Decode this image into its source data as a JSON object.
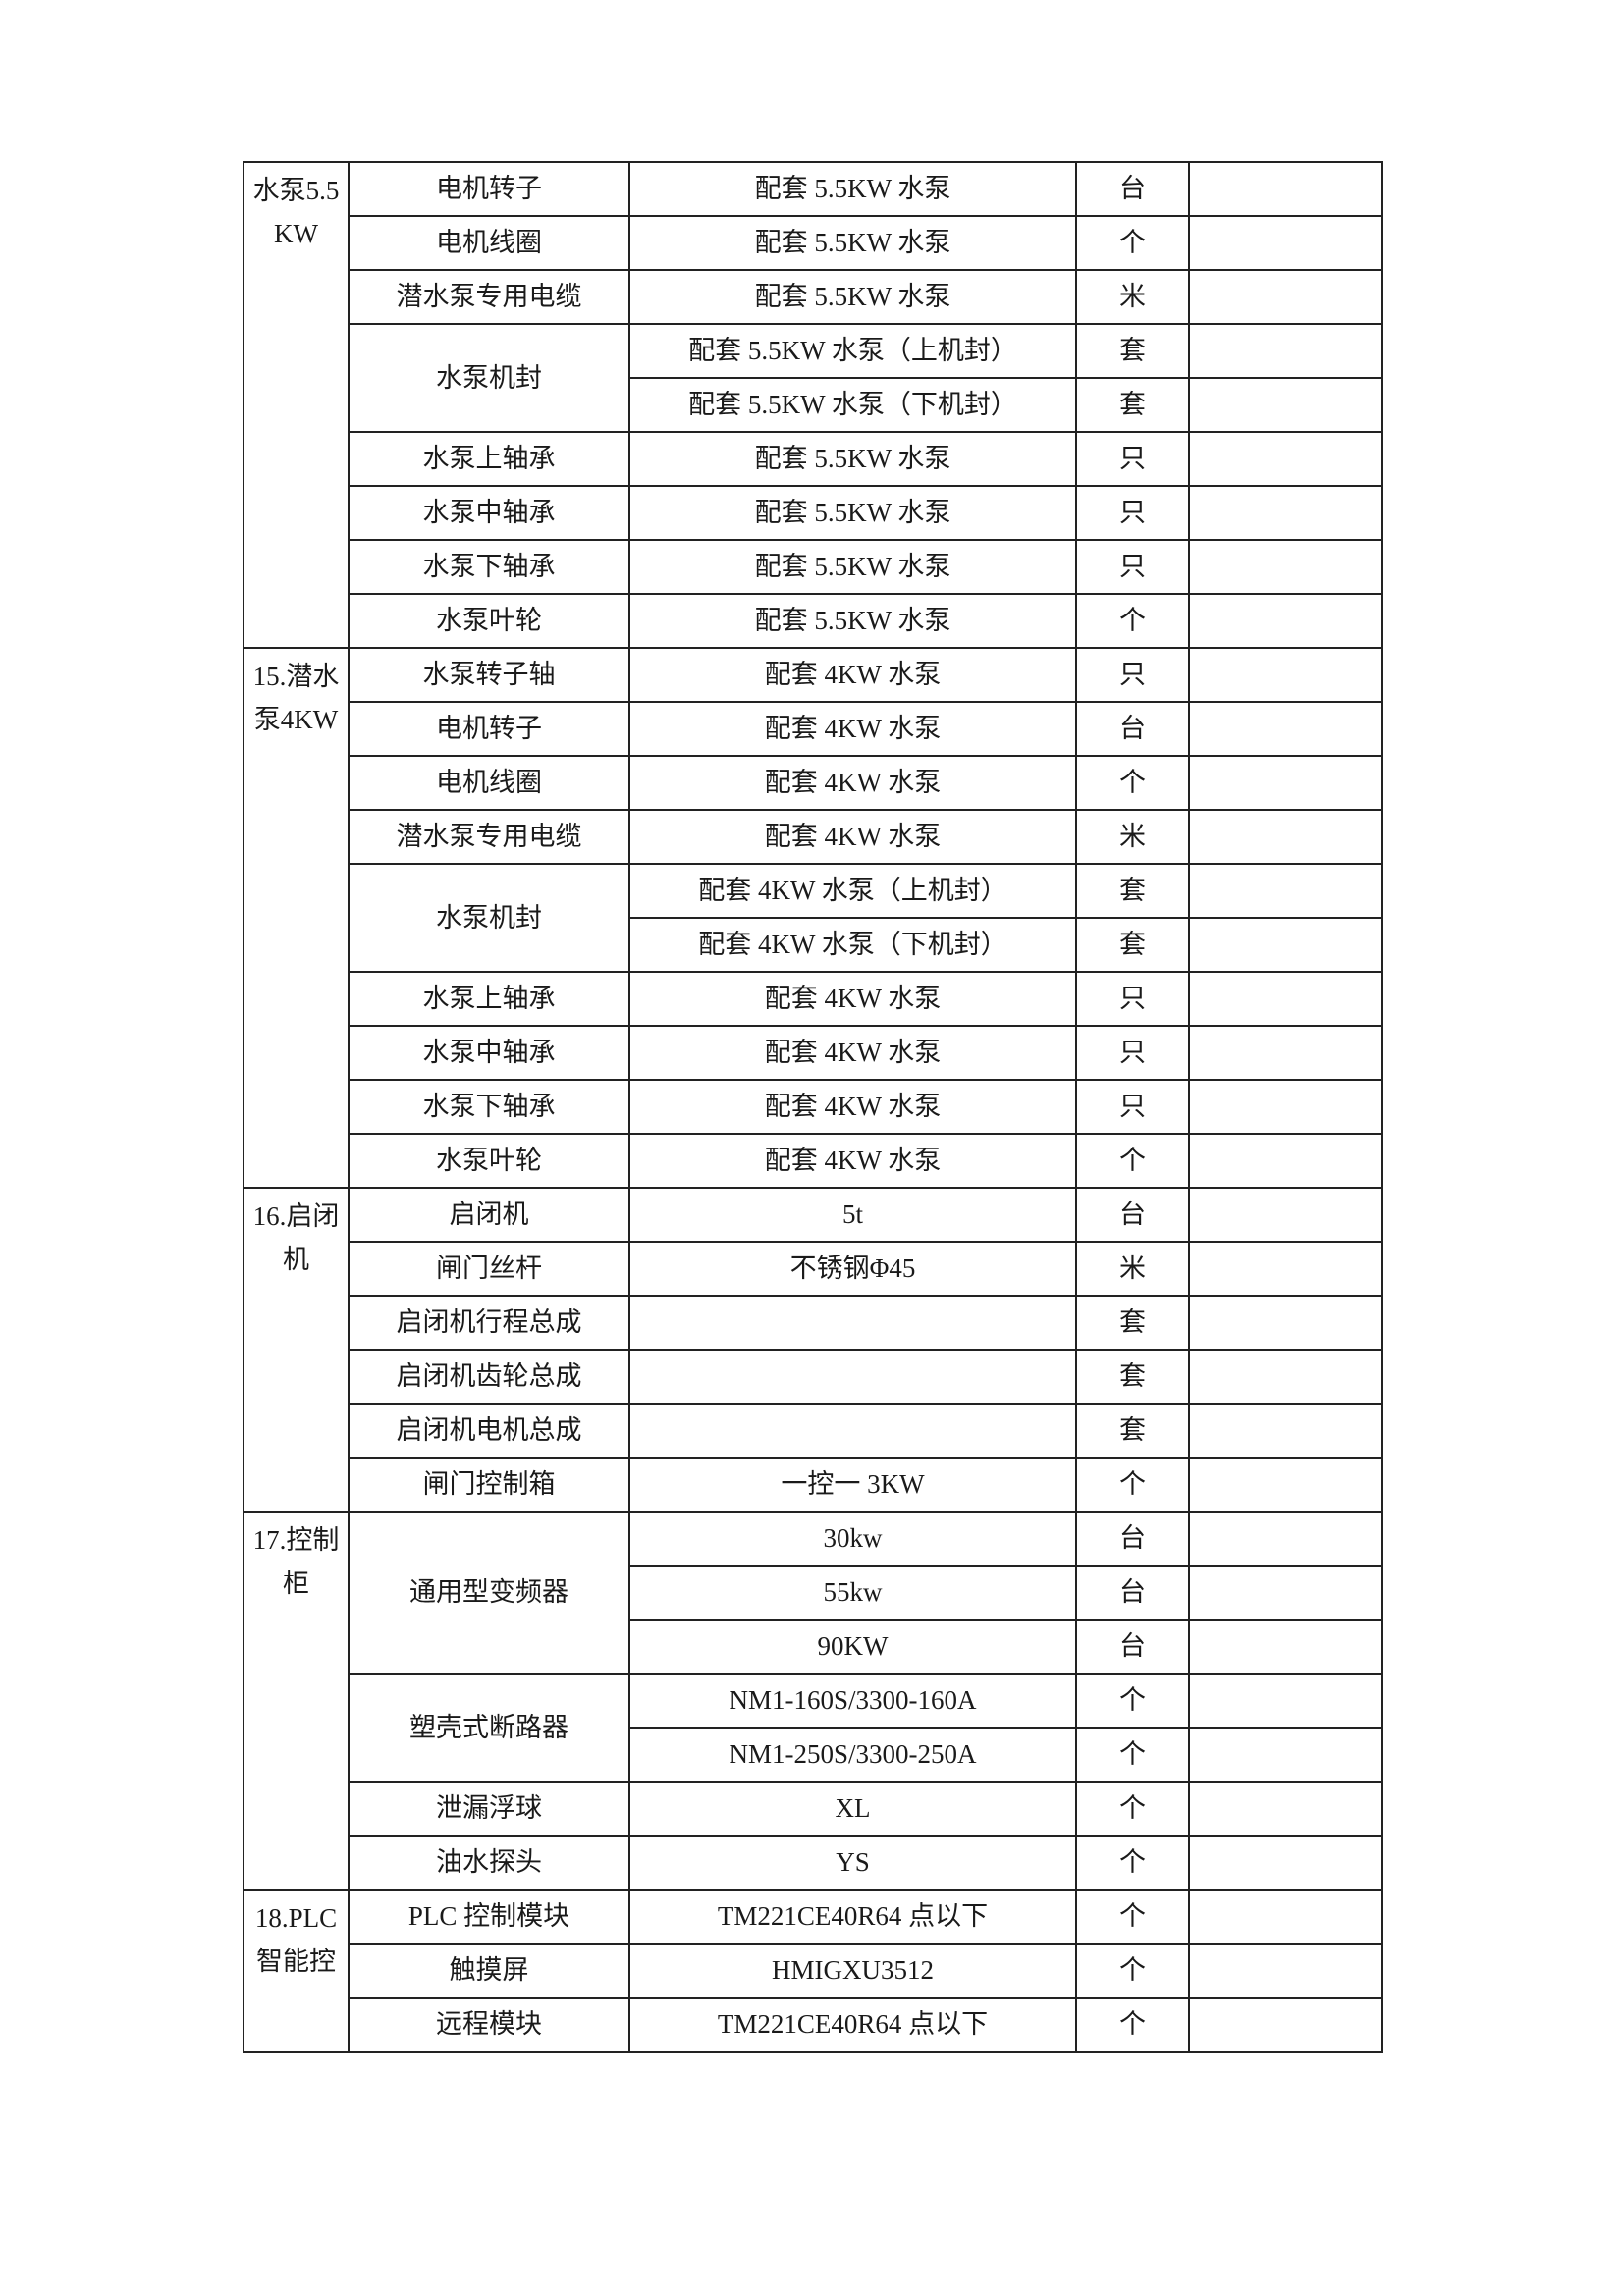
{
  "groups": [
    {
      "label": "水泵5.5KW",
      "items": [
        {
          "name": "电机转子",
          "rows": [
            {
              "spec": "配套 5.5KW 水泵",
              "unit": "台"
            }
          ]
        },
        {
          "name": "电机线圈",
          "rows": [
            {
              "spec": "配套 5.5KW 水泵",
              "unit": "个"
            }
          ]
        },
        {
          "name": "潜水泵专用电缆",
          "rows": [
            {
              "spec": "配套 5.5KW 水泵",
              "unit": "米"
            }
          ]
        },
        {
          "name": "水泵机封",
          "rows": [
            {
              "spec": "配套 5.5KW 水泵（上机封）",
              "unit": "套"
            },
            {
              "spec": "配套 5.5KW 水泵（下机封）",
              "unit": "套"
            }
          ]
        },
        {
          "name": "水泵上轴承",
          "rows": [
            {
              "spec": "配套 5.5KW 水泵",
              "unit": "只"
            }
          ]
        },
        {
          "name": "水泵中轴承",
          "rows": [
            {
              "spec": "配套 5.5KW 水泵",
              "unit": "只"
            }
          ]
        },
        {
          "name": "水泵下轴承",
          "rows": [
            {
              "spec": "配套 5.5KW 水泵",
              "unit": "只"
            }
          ]
        },
        {
          "name": "水泵叶轮",
          "rows": [
            {
              "spec": "配套 5.5KW 水泵",
              "unit": "个"
            }
          ]
        }
      ]
    },
    {
      "label": "15.潜水泵4KW",
      "items": [
        {
          "name": "水泵转子轴",
          "rows": [
            {
              "spec": "配套 4KW 水泵",
              "unit": "只"
            }
          ]
        },
        {
          "name": "电机转子",
          "rows": [
            {
              "spec": "配套 4KW 水泵",
              "unit": "台"
            }
          ]
        },
        {
          "name": "电机线圈",
          "rows": [
            {
              "spec": "配套 4KW 水泵",
              "unit": "个"
            }
          ]
        },
        {
          "name": "潜水泵专用电缆",
          "rows": [
            {
              "spec": "配套 4KW 水泵",
              "unit": "米"
            }
          ]
        },
        {
          "name": "水泵机封",
          "rows": [
            {
              "spec": "配套 4KW 水泵（上机封）",
              "unit": "套"
            },
            {
              "spec": "配套 4KW 水泵（下机封）",
              "unit": "套"
            }
          ]
        },
        {
          "name": "水泵上轴承",
          "rows": [
            {
              "spec": "配套 4KW 水泵",
              "unit": "只"
            }
          ]
        },
        {
          "name": "水泵中轴承",
          "rows": [
            {
              "spec": "配套 4KW 水泵",
              "unit": "只"
            }
          ]
        },
        {
          "name": "水泵下轴承",
          "rows": [
            {
              "spec": "配套 4KW 水泵",
              "unit": "只"
            }
          ]
        },
        {
          "name": "水泵叶轮",
          "rows": [
            {
              "spec": "配套 4KW 水泵",
              "unit": "个"
            }
          ]
        }
      ]
    },
    {
      "label": "16.启闭机",
      "items": [
        {
          "name": "启闭机",
          "rows": [
            {
              "spec": "5t",
              "unit": "台"
            }
          ]
        },
        {
          "name": "闸门丝杆",
          "rows": [
            {
              "spec": "不锈钢Φ45",
              "unit": "米"
            }
          ]
        },
        {
          "name": "启闭机行程总成",
          "rows": [
            {
              "spec": "",
              "unit": "套"
            }
          ]
        },
        {
          "name": "启闭机齿轮总成",
          "rows": [
            {
              "spec": "",
              "unit": "套"
            }
          ]
        },
        {
          "name": "启闭机电机总成",
          "rows": [
            {
              "spec": "",
              "unit": "套"
            }
          ]
        },
        {
          "name": "闸门控制箱",
          "rows": [
            {
              "spec": "一控一 3KW",
              "unit": "个"
            }
          ]
        }
      ]
    },
    {
      "label": "17.控制柜",
      "items": [
        {
          "name": "通用型变频器",
          "rows": [
            {
              "spec": "30kw",
              "unit": "台"
            },
            {
              "spec": "55kw",
              "unit": "台"
            },
            {
              "spec": "90KW",
              "unit": "台"
            }
          ]
        },
        {
          "name": "塑壳式断路器",
          "rows": [
            {
              "spec": "NM1-160S/3300-160A",
              "unit": "个"
            },
            {
              "spec": "NM1-250S/3300-250A",
              "unit": "个"
            }
          ]
        },
        {
          "name": "泄漏浮球",
          "rows": [
            {
              "spec": "XL",
              "unit": "个"
            }
          ]
        },
        {
          "name": "油水探头",
          "rows": [
            {
              "spec": "YS",
              "unit": "个"
            }
          ]
        }
      ]
    },
    {
      "label": "18.PLC智能控",
      "items": [
        {
          "name": "PLC 控制模块",
          "rows": [
            {
              "spec": "TM221CE40R64 点以下",
              "unit": "个"
            }
          ]
        },
        {
          "name": "触摸屏",
          "rows": [
            {
              "spec": "HMIGXU3512",
              "unit": "个"
            }
          ]
        },
        {
          "name": "远程模块",
          "rows": [
            {
              "spec": "TM221CE40R64 点以下",
              "unit": "个"
            }
          ]
        }
      ]
    }
  ]
}
